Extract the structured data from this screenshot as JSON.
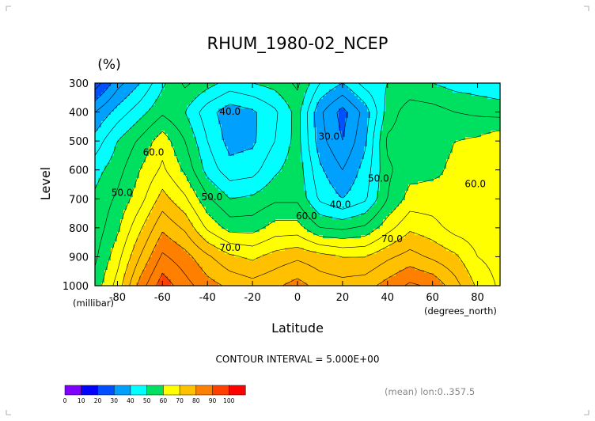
{
  "chart_data": {
    "type": "heatmap",
    "subtype": "filled-contour",
    "title": "RHUM_1980-02_NCEP",
    "units_label": "(%)",
    "xlabel": "Latitude",
    "ylabel": "Level",
    "x_unit_label": "(degrees_north)",
    "y_unit_label": "(millibar)",
    "xlim": [
      -90,
      90
    ],
    "ylim": [
      1000,
      300
    ],
    "x_ticks": [
      -80,
      -60,
      -40,
      -20,
      0,
      20,
      40,
      60,
      80
    ],
    "x_tick_labels": [
      "-80",
      "-60",
      "-40",
      "-20",
      "0",
      "20",
      "40",
      "60",
      "80"
    ],
    "y_ticks": [
      300,
      400,
      500,
      600,
      700,
      800,
      900,
      1000
    ],
    "y_tick_labels": [
      "300",
      "400",
      "500",
      "600",
      "700",
      "800",
      "900",
      "1000"
    ],
    "contour_interval_text": "CONTOUR INTERVAL = 5.000E+00",
    "mean_note": "(mean) lon:0..357.5",
    "contour_labels": [
      {
        "text": "40.0",
        "x": -30,
        "y": 410
      },
      {
        "text": "30.0",
        "x": 14,
        "y": 495
      },
      {
        "text": "60.0",
        "x": -64,
        "y": 550
      },
      {
        "text": "50.0",
        "x": -78,
        "y": 690
      },
      {
        "text": "50.0",
        "x": -38,
        "y": 705
      },
      {
        "text": "40.0",
        "x": 19,
        "y": 730
      },
      {
        "text": "60.0",
        "x": 4,
        "y": 770
      },
      {
        "text": "50.0",
        "x": 36,
        "y": 640
      },
      {
        "text": "60.0",
        "x": 79,
        "y": 660
      },
      {
        "text": "70.0",
        "x": -30,
        "y": 880
      },
      {
        "text": "70.0",
        "x": 42,
        "y": 850
      }
    ],
    "colorbar": {
      "levels": [
        "0",
        "10",
        "20",
        "30",
        "40",
        "50",
        "60",
        "70",
        "80",
        "90",
        "100"
      ],
      "colors": [
        "#7f00ff",
        "#0000ff",
        "#0050ff",
        "#00a0ff",
        "#00ffff",
        "#00e060",
        "#ffff00",
        "#ffc000",
        "#ff8000",
        "#ff4000",
        "#ff0000"
      ]
    },
    "latitudes": [
      -90,
      -80,
      -70,
      -60,
      -50,
      -40,
      -30,
      -20,
      -10,
      0,
      10,
      20,
      30,
      40,
      50,
      60,
      70,
      80,
      90
    ],
    "levels": [
      300,
      400,
      500,
      600,
      700,
      800,
      900,
      1000
    ],
    "values": [
      [
        22,
        33,
        40,
        49,
        56,
        52,
        48,
        50,
        52,
        56,
        45,
        40,
        47,
        50,
        51,
        50,
        48,
        47,
        46
      ],
      [
        35,
        42,
        48,
        54,
        50,
        42,
        37,
        39,
        44,
        52,
        36,
        28,
        37,
        52,
        58,
        57,
        55,
        54,
        53
      ],
      [
        42,
        50,
        56,
        63,
        55,
        45,
        38,
        39,
        45,
        52,
        37,
        30,
        39,
        56,
        58,
        58,
        60,
        61,
        64
      ],
      [
        48,
        53,
        60,
        66,
        59,
        48,
        42,
        43,
        49,
        53,
        41,
        35,
        42,
        54,
        58,
        59,
        61,
        63,
        65
      ],
      [
        51,
        56,
        63,
        72,
        66,
        56,
        50,
        51,
        54,
        54,
        44,
        40,
        44,
        55,
        62,
        62,
        60,
        63,
        65
      ],
      [
        52,
        59,
        69,
        79,
        74,
        64,
        58,
        58,
        62,
        62,
        55,
        54,
        56,
        63,
        69,
        67,
        63,
        62,
        63
      ],
      [
        54,
        63,
        75,
        86,
        82,
        76,
        71,
        69,
        72,
        74,
        72,
        70,
        70,
        74,
        77,
        74,
        71,
        65,
        63
      ],
      [
        57,
        67,
        82,
        93,
        87,
        82,
        79,
        77,
        79,
        82,
        78,
        77,
        78,
        82,
        86,
        84,
        77,
        69,
        64
      ]
    ]
  }
}
